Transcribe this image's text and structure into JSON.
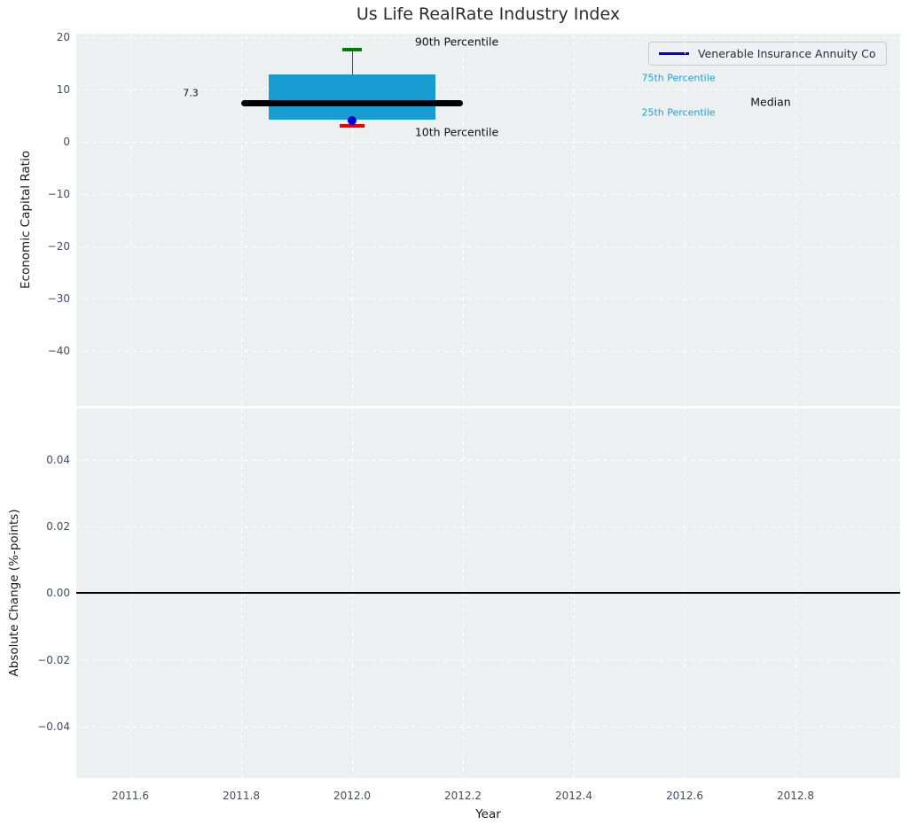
{
  "title": "Us Life RealRate Industry Index",
  "chart_data": [
    {
      "type": "boxplot",
      "title": "Us Life RealRate Industry Index",
      "ylabel": "Economic Capital Ratio",
      "x_center": 2012.0,
      "xlim": [
        2011.51,
        2012.99
      ],
      "ylim": [
        -50.5,
        20.7
      ],
      "grid": "white dashed on light gray",
      "legend_position": "upper right",
      "ytick_labels": [
        "20",
        "10",
        "0",
        "−10",
        "−20",
        "−30",
        "−40"
      ],
      "box": {
        "p90": 17.6,
        "p75": 12.9,
        "median": 7.3,
        "p25": 4.2,
        "p10": 3.0,
        "company_value": 4.1,
        "box_x_span": [
          2011.85,
          2012.15
        ],
        "median_x_span": [
          2011.8,
          2012.2
        ]
      },
      "median_value_label": "7.3",
      "annotations": {
        "p90": "90th Percentile",
        "p10": "10th Percentile",
        "p75": "75th Percentile",
        "p25": "25th Percentile",
        "median": "Median"
      },
      "legend": {
        "label": "Venerable Insurance Annuity Co",
        "line_color": "#0000ee"
      },
      "colors": {
        "box": "#179cd2",
        "median_line": "#000000",
        "p90_cap": "#007d00",
        "p10_cap": "#ea0000",
        "company_dot": "#0000dd",
        "whisker": "#555555",
        "annotation_blue": "#1b9fd8"
      }
    },
    {
      "type": "line",
      "ylabel": "Absolute Change (%-points)",
      "xlabel": "Year",
      "ytick_labels": [
        "0.04",
        "0.02",
        "0.00",
        "−0.02",
        "−0.04"
      ],
      "xtick_labels": [
        "2011.6",
        "2011.8",
        "2012.0",
        "2012.2",
        "2012.4",
        "2012.6",
        "2012.8"
      ],
      "zero_line_y": 0.0,
      "zero_line_color": "#000000"
    }
  ]
}
